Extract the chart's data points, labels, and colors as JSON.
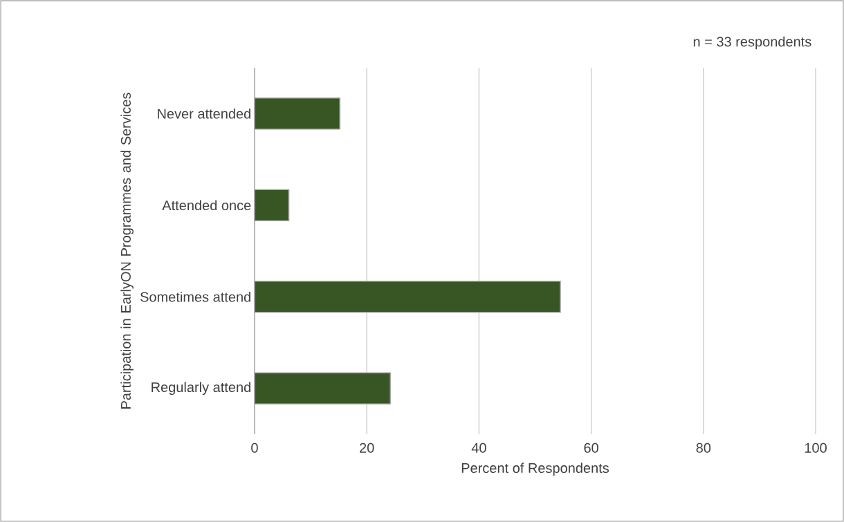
{
  "chart_data": {
    "type": "bar",
    "orientation": "horizontal",
    "ylabel": "Participation in EarlyON Programmes and Services",
    "xlabel": "Percent of Respondents",
    "annotations": [
      "n = 33 respondents"
    ],
    "categories": [
      "Never attended",
      "Attended once",
      "Sometimes attend",
      "Regularly attend"
    ],
    "values": [
      15.2,
      6.1,
      54.5,
      24.2
    ],
    "color": "#375623",
    "xlim": [
      0,
      100
    ],
    "xticks": [
      0,
      20,
      40,
      60,
      80,
      100
    ],
    "grid": "x"
  }
}
